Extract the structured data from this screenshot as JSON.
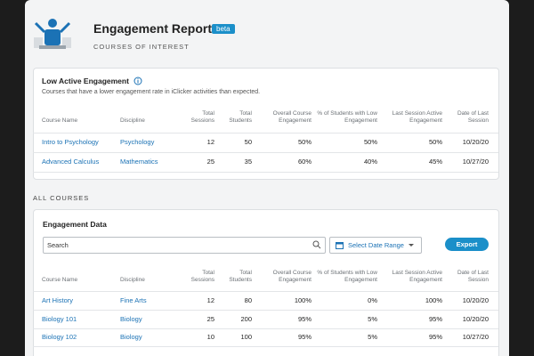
{
  "header": {
    "title": "Engagement Report",
    "badge": "beta",
    "subtitle": "COURSES OF INTEREST"
  },
  "low_engagement": {
    "title": "Low Active Engagement",
    "description": "Courses that have a lower engagement rate in iClicker activities than expected.",
    "columns": [
      "Course Name",
      "Discipline",
      "Total Sessions",
      "Total Students",
      "Overall Course Engagement",
      "% of Students with Low Engagement",
      "Last Session Active Engagement",
      "Date of Last Session"
    ],
    "rows": [
      [
        "Intro to Psychology",
        "Psychology",
        12,
        50,
        "50%",
        "50%",
        "50%",
        "10/20/20"
      ],
      [
        "Advanced Calculus",
        "Mathematics",
        25,
        35,
        "60%",
        "40%",
        "45%",
        "10/27/20"
      ]
    ]
  },
  "all_courses": {
    "section_label": "ALL COURSES",
    "title": "Engagement Data",
    "search_placeholder": "Search",
    "date_button": "Select Date Range",
    "export_button": "Export",
    "columns": [
      "Course Name",
      "Discipline",
      "Total Sessions",
      "Total Students",
      "Overall Course Engagement",
      "% of Students with Low Engagement",
      "Last Session Active Engagement",
      "Date of Last Session"
    ],
    "rows": [
      [
        "Art History",
        "Fine Arts",
        12,
        80,
        "100%",
        "0%",
        "100%",
        "10/20/20"
      ],
      [
        "Biology 101",
        "Biology",
        25,
        200,
        "95%",
        "5%",
        "95%",
        "10/20/20"
      ],
      [
        "Biology 102",
        "Biology",
        10,
        100,
        "95%",
        "5%",
        "95%",
        "10/27/20"
      ]
    ]
  }
}
